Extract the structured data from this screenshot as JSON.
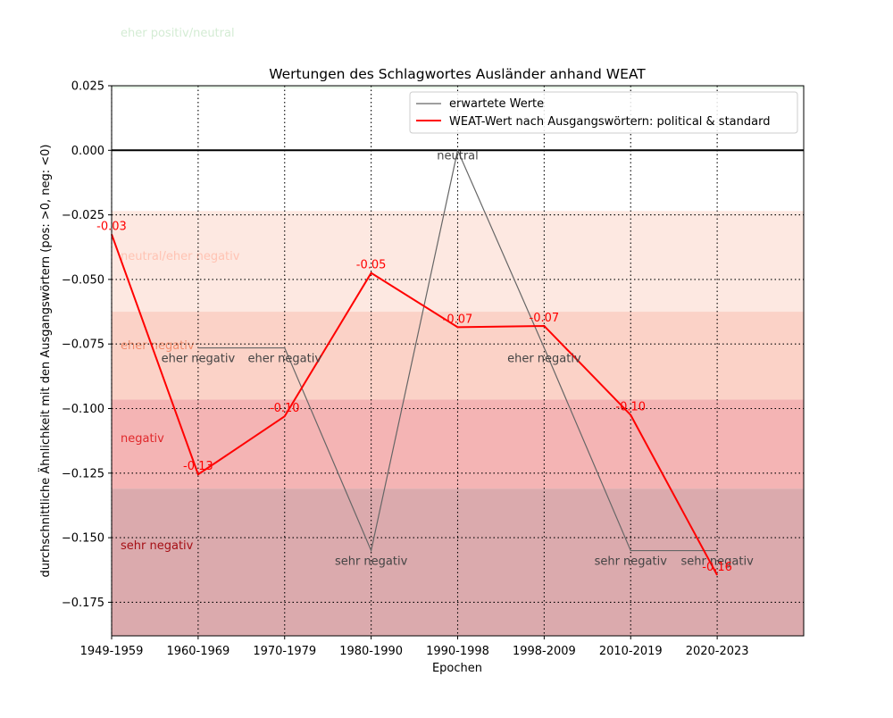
{
  "chart_data": {
    "type": "line",
    "title": "Wertungen des Schlagwortes Ausländer anhand WEAT",
    "xlabel": "Epochen",
    "ylabel": "durchschnittliche Ähnlichkeit mit den Ausgangswörtern (pos: >0, neg: <0)",
    "categories": [
      "1949-1959",
      "1960-1969",
      "1970-1979",
      "1980-1990",
      "1990-1998",
      "1998-2009",
      "2010-2019",
      "2020-2023"
    ],
    "ylim": [
      -0.188,
      0.025
    ],
    "yticks": [
      0.025,
      0.0,
      -0.025,
      -0.05,
      -0.075,
      -0.1,
      -0.125,
      -0.15,
      -0.175
    ],
    "ytick_labels": [
      "0.025",
      "0.000",
      "−0.025",
      "−0.050",
      "−0.075",
      "−0.100",
      "−0.125",
      "−0.150",
      "−0.175"
    ],
    "grid": true,
    "legend_position": "top-right",
    "series": [
      {
        "name": "erwartete Werte",
        "color": "#666666",
        "values": [
          null,
          -0.0765,
          -0.0765,
          -0.155,
          0.0,
          -0.0765,
          -0.155,
          -0.155
        ],
        "labels": [
          "",
          "eher negativ",
          "eher negativ",
          "sehr negativ",
          "neutral",
          "eher negativ",
          "sehr negativ",
          "sehr negativ"
        ]
      },
      {
        "name": "WEAT-Wert nach Ausgangswörtern: political & standard",
        "color": "#ff0000",
        "values": [
          -0.0325,
          -0.1255,
          -0.103,
          -0.0475,
          -0.0685,
          -0.068,
          -0.1025,
          -0.1645
        ],
        "labels": [
          "-0.03",
          "-0.13",
          "-0.10",
          "-0.05",
          "-0.07",
          "-0.07",
          "-0.10",
          "-0.16"
        ]
      }
    ],
    "bands": [
      {
        "label": "eher positiv/neutral",
        "from": 0.024,
        "to": 0.025,
        "color": "#e8f5e8",
        "label_color": "#d4ecd4"
      },
      {
        "label": "neutral/eher negativ",
        "from": -0.0625,
        "to": -0.0235,
        "color": "#fde8e1",
        "label_color": "#ffc3b3"
      },
      {
        "label": "eher negativ",
        "from": -0.0965,
        "to": -0.0625,
        "color": "#fbd2c7",
        "label_color": "#f28c6b"
      },
      {
        "label": "negativ",
        "from": -0.131,
        "to": -0.0965,
        "color": "#f4b4b4",
        "label_color": "#e0282b"
      },
      {
        "label": "sehr negativ",
        "from": -0.188,
        "to": -0.131,
        "color": "#dbaaad",
        "label_color": "#a50f15"
      }
    ],
    "reference_line": 0.0
  }
}
